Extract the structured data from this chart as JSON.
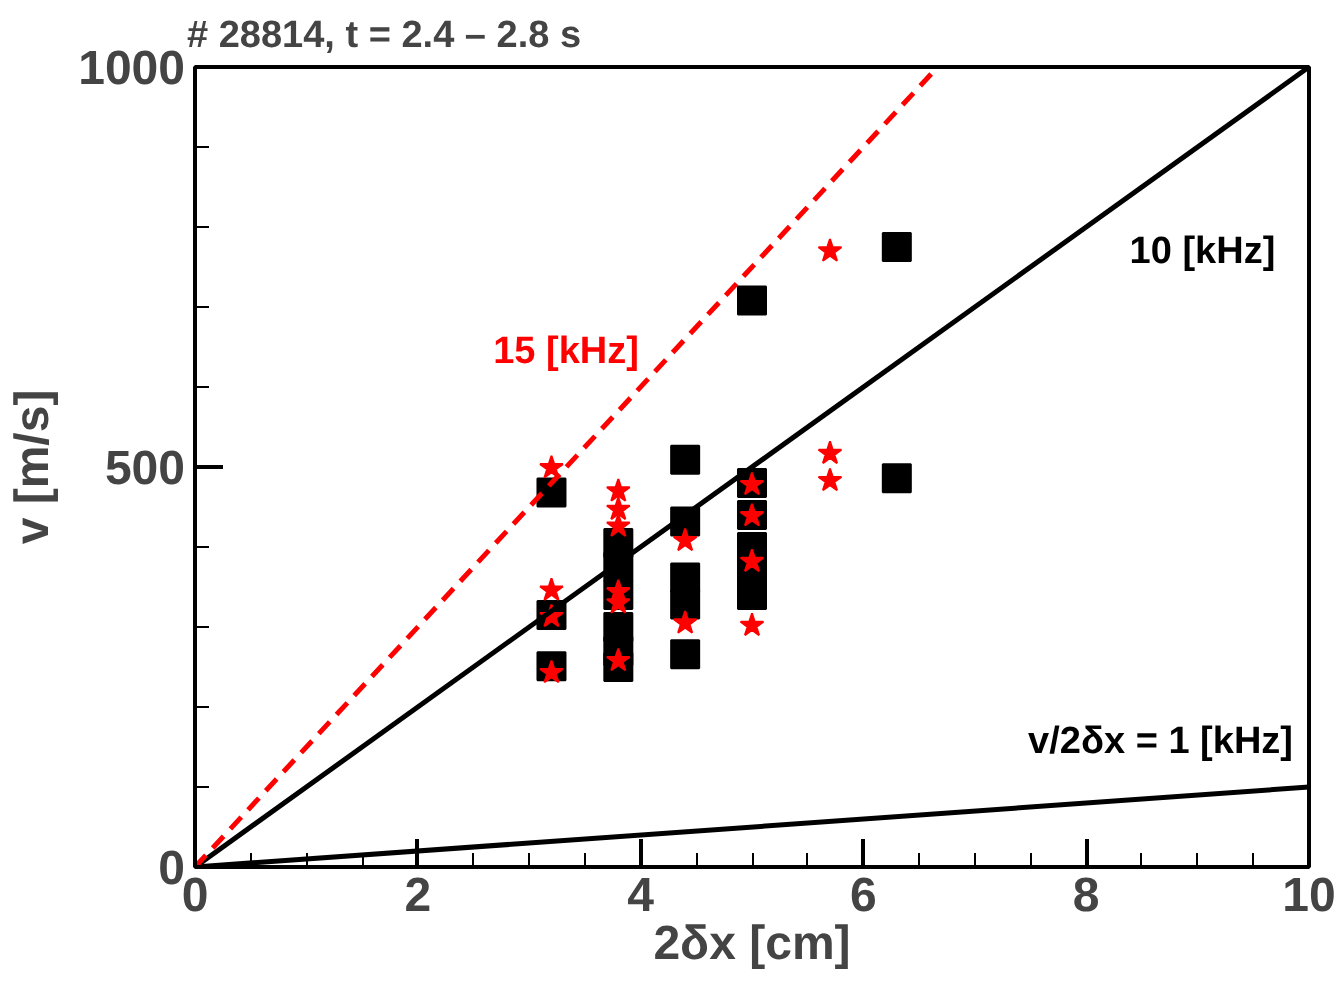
{
  "chart_data": {
    "type": "scatter",
    "title": "# 28814, t = 2.4 – 2.8 s",
    "xlabel": "2δx [cm]",
    "ylabel": "v [m/s]",
    "xlim": [
      0,
      10
    ],
    "ylim": [
      0,
      1000
    ],
    "xticks": [
      0,
      2,
      4,
      6,
      8,
      10
    ],
    "yticks": [
      0,
      500,
      1000
    ],
    "grid": false,
    "legend": false,
    "series": [
      {
        "marker": "square",
        "color": "#000000",
        "x": [
          3.2,
          3.2,
          3.2,
          3.8,
          3.8,
          3.8,
          3.8,
          3.8,
          3.8,
          4.4,
          4.4,
          4.4,
          4.4,
          4.4,
          5.0,
          5.0,
          5.0,
          5.0,
          5.0,
          5.0,
          6.3,
          6.3
        ],
        "values": [
          468,
          315,
          251,
          405,
          375,
          340,
          300,
          270,
          250,
          509,
          432,
          362,
          328,
          266,
          708,
          480,
          440,
          400,
          370,
          340,
          775,
          486
        ]
      },
      {
        "marker": "star",
        "color": "#ff0000",
        "x": [
          3.2,
          3.2,
          3.2,
          3.2,
          3.8,
          3.8,
          3.8,
          3.8,
          3.8,
          3.8,
          4.4,
          4.4,
          5.0,
          5.0,
          5.0,
          5.0,
          5.7,
          5.7,
          5.7
        ],
        "values": [
          499,
          346,
          313,
          243,
          470,
          447,
          426,
          344,
          330,
          258,
          408,
          305,
          478,
          439,
          382,
          302,
          770,
          517,
          483
        ]
      },
      {
        "type": "line",
        "name": "v/2δx = 1 [kHz]",
        "color": "#000000",
        "line_style": "solid",
        "x": [
          0,
          10
        ],
        "values": [
          0,
          100
        ]
      },
      {
        "type": "line",
        "name": "10 [kHz]",
        "color": "#000000",
        "line_style": "solid",
        "x": [
          0,
          10
        ],
        "values": [
          0,
          1000
        ]
      },
      {
        "type": "line",
        "name": "15 [kHz]",
        "color": "#ff0000",
        "line_style": "dashed",
        "x": [
          0,
          6.667
        ],
        "values": [
          0,
          1000
        ]
      }
    ]
  }
}
